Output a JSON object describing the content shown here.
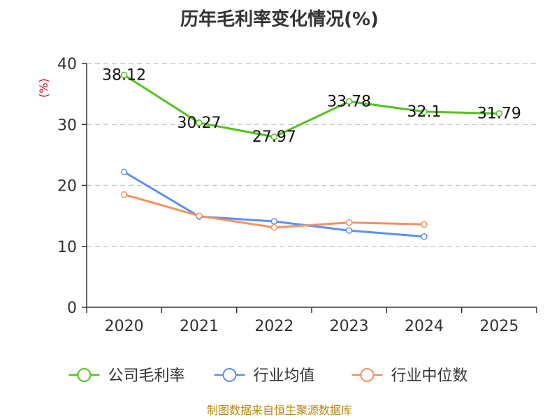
{
  "chart_data": {
    "type": "line",
    "title": "历年毛利率变化情况(%)",
    "ylabel": "(%)",
    "xlabel": "",
    "categories": [
      "2020",
      "2021",
      "2022",
      "2023",
      "2024",
      "2025"
    ],
    "ylim": [
      0,
      40
    ],
    "yticks": [
      0,
      10,
      20,
      30,
      40
    ],
    "grid": true,
    "legend_position": "bottom",
    "series": [
      {
        "name": "公司毛利率",
        "color": "#52c41a",
        "values": [
          38.12,
          30.27,
          27.97,
          33.78,
          32.1,
          31.79
        ],
        "labels": [
          "38.12",
          "30.27",
          "27.97",
          "33.78",
          "32.1",
          "31.79"
        ]
      },
      {
        "name": "行业均值",
        "color": "#5b8ff9",
        "values": [
          22.2,
          14.9,
          14.1,
          12.6,
          11.6,
          null
        ]
      },
      {
        "name": "行业中位数",
        "color": "#f6915e",
        "values": [
          18.5,
          15.0,
          13.1,
          13.9,
          13.6,
          null
        ]
      }
    ],
    "source": "制图数据来自恒生聚源数据库"
  }
}
